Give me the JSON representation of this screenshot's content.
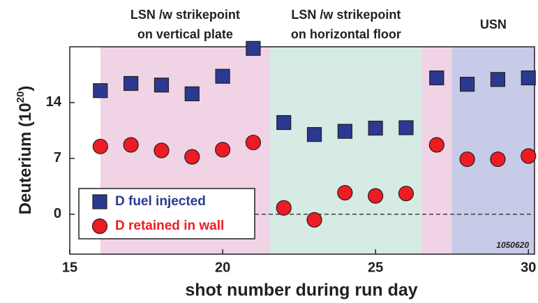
{
  "chart_data": {
    "type": "scatter",
    "xlabel": "shot number during run day",
    "ylabel": {
      "base": "Deuterium (10",
      "sup": "20",
      "close": ")"
    },
    "annotation": "1050620",
    "xlim": [
      15,
      30.2
    ],
    "ylim": [
      -5,
      21
    ],
    "xticks": [
      15,
      20,
      25,
      30
    ],
    "yticks": [
      0,
      7,
      14
    ],
    "hline": 0,
    "regions": [
      {
        "lines": [
          "LSN /w strikepoint",
          "on vertical plate"
        ],
        "x": [
          16,
          21.55
        ],
        "color": "#f1d3e6"
      },
      {
        "lines": [
          "LSN /w strikepoint",
          "on horizontal floor"
        ],
        "x": [
          21.55,
          26.52
        ],
        "color": "#d5ebe4"
      },
      {
        "lines": [],
        "x": [
          26.52,
          27.5
        ],
        "color": "#f1d3e6"
      },
      {
        "lines": [
          "USN"
        ],
        "x": [
          27.5,
          30.2
        ],
        "color": "#c7cbe8"
      }
    ],
    "series": [
      {
        "name": "D fuel injected",
        "marker": "square",
        "color": "#2b3990",
        "x": [
          16,
          17,
          18,
          19,
          20,
          21,
          22,
          23,
          24,
          25,
          26,
          27,
          28,
          29,
          30
        ],
        "values": [
          15.5,
          16.4,
          16.2,
          15.1,
          17.3,
          20.8,
          11.5,
          10.0,
          10.4,
          10.8,
          10.85,
          17.1,
          16.3,
          16.9,
          17.1
        ]
      },
      {
        "name": "D retained in wall",
        "marker": "circle",
        "color": "#ed1c24",
        "x": [
          16,
          17,
          18,
          19,
          20,
          21,
          22,
          23,
          24,
          25,
          26,
          27,
          28,
          29,
          30
        ],
        "values": [
          8.5,
          8.7,
          8.0,
          7.2,
          8.1,
          9.0,
          0.8,
          -0.7,
          2.7,
          2.3,
          2.6,
          8.7,
          6.9,
          6.9,
          7.3
        ]
      }
    ]
  }
}
